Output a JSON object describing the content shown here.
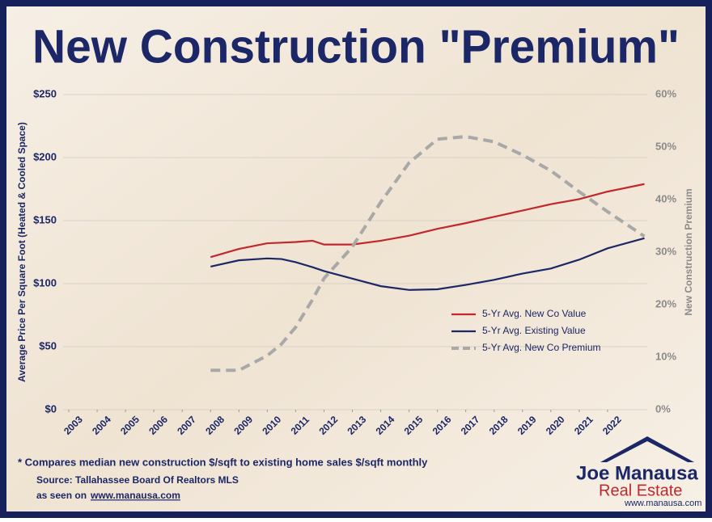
{
  "chart_data": {
    "type": "line",
    "title": "New Construction \"Premium\"",
    "y_label": "Average Price Per Square Foot (Heated & Cooled Space)",
    "y2_label": "New Construction Premium",
    "x": [
      2008,
      2009,
      2010,
      2010.5,
      2011,
      2011.6,
      2012,
      2013,
      2014,
      2015,
      2016,
      2017,
      2018,
      2019,
      2020,
      2021,
      2022,
      2023.3
    ],
    "series": [
      {
        "name": "5-Yr Avg. New Co Value",
        "color": "#c0282d",
        "values": [
          121,
          127.5,
          132,
          132.5,
          133,
          134,
          131,
          131,
          134,
          138,
          143.5,
          148,
          153,
          158,
          163,
          167,
          173,
          179
        ]
      },
      {
        "name": "5-Yr Avg. Existing Value",
        "color": "#1b2766",
        "values": [
          113.5,
          118.5,
          120,
          119.5,
          117,
          113,
          110,
          104,
          98,
          95,
          95.5,
          99,
          103,
          108,
          112,
          119,
          128,
          136
        ]
      },
      {
        "name": "5-Yr Avg. New Co Premium",
        "color": "#a8a8a8",
        "axis": "y2",
        "dash": true,
        "values": [
          7.5,
          7.5,
          10.3,
          12.5,
          15.7,
          21,
          25,
          31,
          39.5,
          47,
          51.5,
          52,
          51,
          48.5,
          45.5,
          41.5,
          37.7,
          33
        ]
      }
    ],
    "xlim": [
      2002.8,
      2023.4
    ],
    "xticks": [
      2003,
      2004,
      2005,
      2006,
      2007,
      2008,
      2009,
      2010,
      2011,
      2012,
      2013,
      2014,
      2015,
      2016,
      2017,
      2018,
      2019,
      2020,
      2021,
      2022
    ],
    "ylim": [
      0,
      250
    ],
    "yticks": [
      {
        "value": 0,
        "label": "$0"
      },
      {
        "value": 50,
        "label": "$50"
      },
      {
        "value": 100,
        "label": "$100"
      },
      {
        "value": 150,
        "label": "$150"
      },
      {
        "value": 200,
        "label": "$200"
      },
      {
        "value": 250,
        "label": "$250"
      }
    ],
    "y2lim": [
      0,
      60
    ],
    "y2ticks": [
      {
        "value": 0,
        "label": "0%"
      },
      {
        "value": 10,
        "label": "10%"
      },
      {
        "value": 20,
        "label": "20%"
      },
      {
        "value": 30,
        "label": "30%"
      },
      {
        "value": 40,
        "label": "40%"
      },
      {
        "value": 50,
        "label": "50%"
      },
      {
        "value": 60,
        "label": "60%"
      }
    ],
    "grid": true,
    "legend": "lower-right"
  },
  "footer": {
    "note": "* Compares median new construction $/sqft to existing home sales $/sqft monthly",
    "source": "Source: Tallahassee Board Of Realtors MLS",
    "seen": "as seen on",
    "site": "www.manausa.com",
    "logo": {
      "first": "Joe",
      "last": "Manausa",
      "sub": "Real Estate",
      "url": "www.manausa.com"
    }
  }
}
